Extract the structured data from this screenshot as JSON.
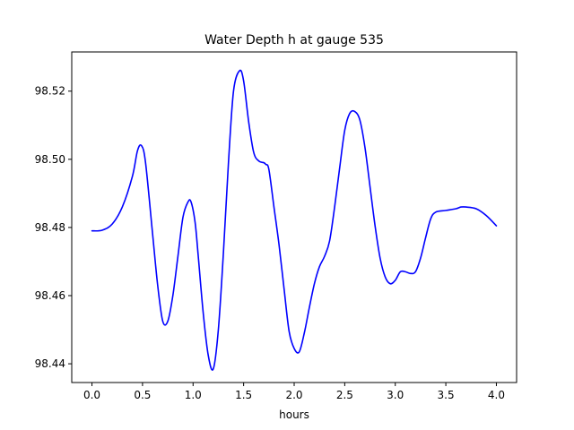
{
  "chart_data": {
    "type": "line",
    "title": "Water Depth h at gauge 535",
    "xlabel": "hours",
    "ylabel": "",
    "xlim": [
      -0.2,
      4.2
    ],
    "ylim": [
      98.4345,
      98.5315
    ],
    "grid": false,
    "x_ticks": [
      0.0,
      0.5,
      1.0,
      1.5,
      2.0,
      2.5,
      3.0,
      3.5,
      4.0
    ],
    "x_tick_labels": [
      "0.0",
      "0.5",
      "1.0",
      "1.5",
      "2.0",
      "2.5",
      "3.0",
      "3.5",
      "4.0"
    ],
    "y_ticks": [
      98.44,
      98.46,
      98.48,
      98.5,
      98.52
    ],
    "y_tick_labels": [
      "98.44",
      "98.46",
      "98.48",
      "98.50",
      "98.52"
    ],
    "series": [
      {
        "color": "#0000ff",
        "x": [
          0.0,
          0.1,
          0.2,
          0.3,
          0.4,
          0.45,
          0.49,
          0.53,
          0.6,
          0.65,
          0.7,
          0.75,
          0.8,
          0.85,
          0.9,
          0.95,
          0.98,
          1.02,
          1.05,
          1.1,
          1.15,
          1.2,
          1.25,
          1.3,
          1.35,
          1.4,
          1.46,
          1.5,
          1.55,
          1.6,
          1.65,
          1.7,
          1.72,
          1.75,
          1.8,
          1.85,
          1.9,
          1.95,
          2.0,
          2.05,
          2.1,
          2.15,
          2.2,
          2.25,
          2.3,
          2.35,
          2.4,
          2.45,
          2.5,
          2.55,
          2.6,
          2.65,
          2.7,
          2.75,
          2.8,
          2.85,
          2.9,
          2.95,
          3.0,
          3.05,
          3.1,
          3.15,
          3.2,
          3.25,
          3.3,
          3.35,
          3.4,
          3.5,
          3.6,
          3.65,
          3.7,
          3.8,
          3.9,
          4.0
        ],
        "y": [
          98.479,
          98.4792,
          98.481,
          98.486,
          98.495,
          98.5025,
          98.504,
          98.499,
          98.478,
          98.463,
          98.4525,
          98.4525,
          98.46,
          98.4715,
          98.483,
          98.4875,
          98.4875,
          98.4815,
          98.472,
          98.455,
          98.4425,
          98.4385,
          98.45,
          98.4725,
          98.499,
          98.52,
          98.526,
          98.523,
          98.511,
          98.502,
          98.4995,
          98.499,
          98.4985,
          98.497,
          98.486,
          98.475,
          98.462,
          98.4495,
          98.4445,
          98.4435,
          98.449,
          98.4565,
          98.4635,
          98.4685,
          98.4715,
          98.476,
          98.486,
          98.4975,
          98.5085,
          98.5135,
          98.514,
          98.5115,
          98.5035,
          98.492,
          98.4805,
          98.471,
          98.4655,
          98.4635,
          98.4645,
          98.467,
          98.467,
          98.4665,
          98.467,
          98.471,
          98.477,
          98.4825,
          98.4845,
          98.485,
          98.4855,
          98.486,
          98.486,
          98.4855,
          98.4835,
          98.4805
        ]
      }
    ]
  }
}
